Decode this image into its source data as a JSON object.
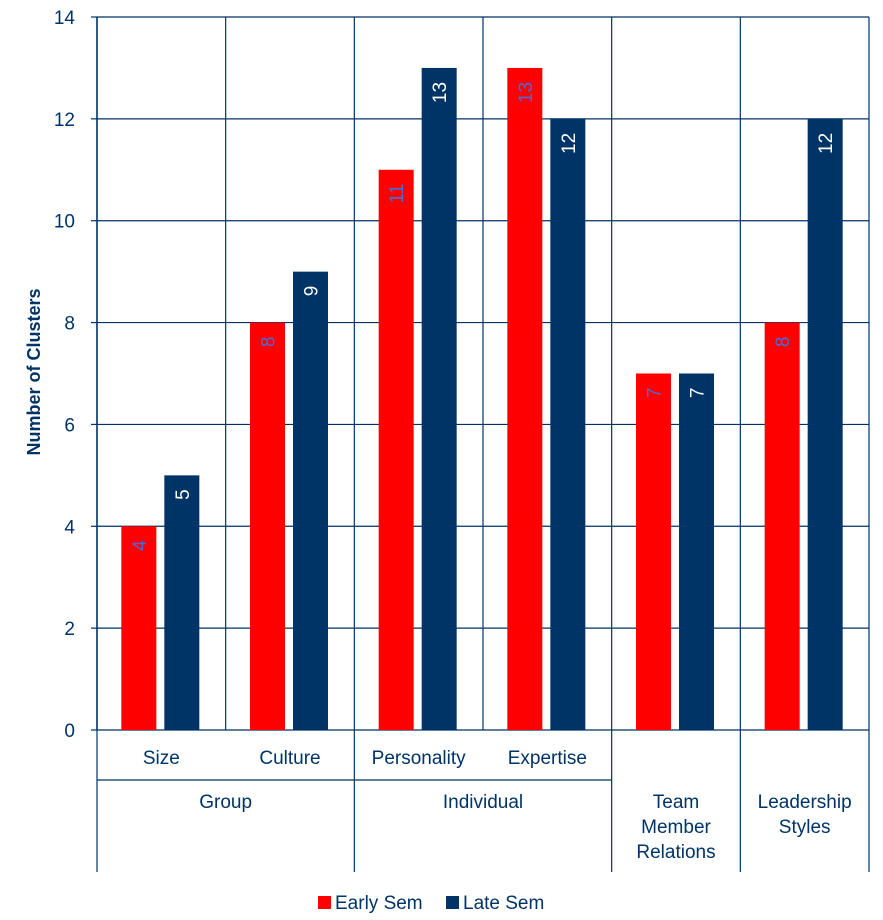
{
  "chart_data": {
    "type": "bar",
    "ylabel": "Number of Clusters",
    "ylim": [
      0,
      14
    ],
    "yticks": [
      0,
      2,
      4,
      6,
      8,
      10,
      12,
      14
    ],
    "grid": true,
    "legend_position": "bottom",
    "categories": [
      "Size",
      "Culture",
      "Personality",
      "Expertise",
      "Team Member Relations",
      "Leadership Styles"
    ],
    "category_label_lines": [
      [
        "Size"
      ],
      [
        "Culture"
      ],
      [
        "Personality"
      ],
      [
        "Expertise"
      ],
      [
        "Team",
        "Member",
        "Relations"
      ],
      [
        "Leadership",
        "Styles"
      ]
    ],
    "groups": [
      {
        "label": "Group",
        "categories": [
          "Size",
          "Culture"
        ]
      },
      {
        "label": "Individual",
        "categories": [
          "Personality",
          "Expertise"
        ]
      }
    ],
    "series": [
      {
        "name": "Early Sem",
        "color": "#ff0000",
        "label_color": "#4a6bd6",
        "values": [
          4,
          8,
          11,
          13,
          7,
          8
        ]
      },
      {
        "name": "Late Sem",
        "color": "#003366",
        "label_color": "#ffffff",
        "values": [
          5,
          9,
          13,
          12,
          7,
          12
        ]
      }
    ],
    "axis_color": "#003366"
  }
}
